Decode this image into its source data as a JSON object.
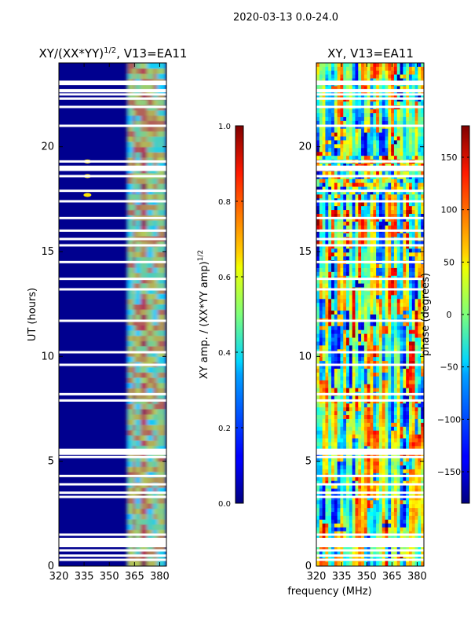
{
  "figure_title": "2020-03-13 0.0-24.0",
  "chart_data": [
    {
      "type": "heatmap",
      "title_main": "XY/(XX*YY)",
      "title_sup": "1/2",
      "title_suffix": ", V13=EA11",
      "xlabel": "",
      "ylabel": "UT (hours)",
      "xlim": [
        320,
        384
      ],
      "ylim": [
        0,
        24
      ],
      "xticks": [
        320,
        335,
        350,
        365,
        380
      ],
      "yticks": [
        0,
        5,
        10,
        15,
        20
      ],
      "colorbar": {
        "label_main": "XY amp. / (XX*YY amp)",
        "label_sup": "1/2",
        "range": [
          0.0,
          1.0
        ],
        "ticks": [
          "0.0",
          "0.2",
          "0.4",
          "0.6",
          "0.8",
          "1.0"
        ],
        "colormap": "jet"
      }
    },
    {
      "type": "heatmap",
      "title": "XY, V13=EA11",
      "xlabel": "frequency (MHz)",
      "ylabel": "",
      "xlim": [
        320,
        384
      ],
      "ylim": [
        0,
        24
      ],
      "xticks": [
        320,
        335,
        350,
        365,
        380
      ],
      "yticks": [
        0,
        5,
        10,
        15,
        20
      ],
      "colorbar": {
        "label": "phase (degrees)",
        "range": [
          -180,
          180
        ],
        "ticks": [
          "150",
          "100",
          "50",
          "0",
          "−50",
          "−100",
          "−150"
        ],
        "colormap": "jet"
      }
    }
  ],
  "data_gaps_hours": [
    0.3,
    0.5,
    0.75,
    1.2,
    1.5,
    3.3,
    3.5,
    3.9,
    4.3,
    5.2,
    5.5,
    7.9,
    8.2,
    9.6,
    10.2,
    11.7,
    13.2,
    13.7,
    14.5,
    15.3,
    15.6,
    16.0,
    16.6,
    17.4,
    17.9,
    18.6,
    18.9,
    19.3,
    21.0,
    21.9,
    22.3,
    22.5,
    22.7,
    23.0,
    23.1
  ]
}
